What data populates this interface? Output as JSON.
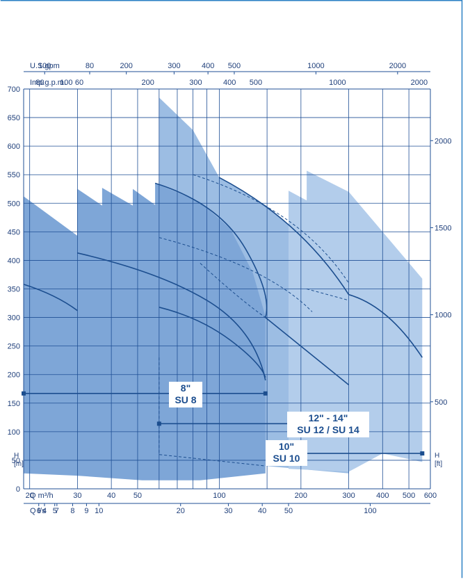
{
  "chart_data": {
    "type": "area",
    "title": "",
    "x_axes": [
      {
        "unit_label": "U.S.gpm",
        "ticks": [
          "80",
          "100",
          "200",
          "300",
          "400",
          "500",
          "1000",
          "2000"
        ]
      },
      {
        "unit_label": "Imp.g.p.m.",
        "ticks": [
          "60",
          "80",
          "100",
          "200",
          "300",
          "400",
          "500",
          "1000",
          "2000"
        ]
      },
      {
        "unit_label": "Q m³/h",
        "ticks": [
          "20",
          "30",
          "40",
          "50",
          "100",
          "200",
          "300",
          "400",
          "500",
          "600"
        ]
      },
      {
        "unit_label": "Q l/s",
        "ticks": [
          "4",
          "5",
          "6",
          "7",
          "8",
          "9",
          "10",
          "20",
          "30",
          "40",
          "50",
          "100"
        ]
      }
    ],
    "y_left": {
      "label_line1": "H",
      "label_line2": "[m]",
      "ylim": [
        0,
        700
      ],
      "ticks": [
        "0",
        "50",
        "100",
        "150",
        "200",
        "250",
        "300",
        "350",
        "400",
        "450",
        "500",
        "550",
        "600",
        "650",
        "700"
      ]
    },
    "y_right": {
      "label_line1": "H",
      "label_line2": "[ft]",
      "ticks": [
        "500",
        "1000",
        "1500",
        "2000"
      ]
    },
    "x_scale": "log",
    "xlim_m3h": [
      19,
      600
    ],
    "grid": true,
    "series": [
      {
        "name": "8\" SU 8",
        "flow_range_m3h": [
          19,
          148
        ],
        "top_outline": [
          [
            19,
            512
          ],
          [
            30,
            443
          ],
          [
            30,
            525
          ],
          [
            37,
            496
          ],
          [
            37,
            527
          ],
          [
            48,
            496
          ],
          [
            48,
            525
          ],
          [
            58,
            497
          ],
          [
            58,
            535
          ],
          [
            85,
            502
          ],
          [
            110,
            455
          ],
          [
            133,
            378
          ],
          [
            148,
            302
          ]
        ],
        "bottom_outline": [
          [
            19,
            27
          ],
          [
            30,
            23
          ],
          [
            52,
            15
          ],
          [
            85,
            15
          ],
          [
            148,
            27
          ]
        ]
      },
      {
        "name": "10\" SU 10",
        "flow_range_m3h": [
          60,
          300
        ],
        "top_outline": [
          [
            60,
            685
          ],
          [
            80,
            628
          ],
          [
            100,
            545
          ],
          [
            150,
            495
          ],
          [
            200,
            445
          ],
          [
            300,
            340
          ]
        ],
        "bottom_outline": [
          [
            60,
            50
          ],
          [
            148,
            40
          ],
          [
            300,
            27
          ]
        ]
      },
      {
        "name": "12\" - 14\" SU 12 / SU 14",
        "flow_range_m3h": [
          180,
          560
        ],
        "top_outline": [
          [
            180,
            522
          ],
          [
            210,
            505
          ],
          [
            210,
            557
          ],
          [
            300,
            520
          ],
          [
            400,
            450
          ],
          [
            560,
            368
          ]
        ],
        "bottom_outline": [
          [
            180,
            35
          ],
          [
            300,
            30
          ],
          [
            400,
            62
          ],
          [
            560,
            47
          ]
        ]
      }
    ],
    "annotations": [
      {
        "text_line1": "8\"",
        "text_line2": "SU 8"
      },
      {
        "text_line1": "10\"",
        "text_line2": "SU 10"
      },
      {
        "text_line1": "12\" - 14\"",
        "text_line2": "SU 12 / SU 14"
      }
    ]
  }
}
